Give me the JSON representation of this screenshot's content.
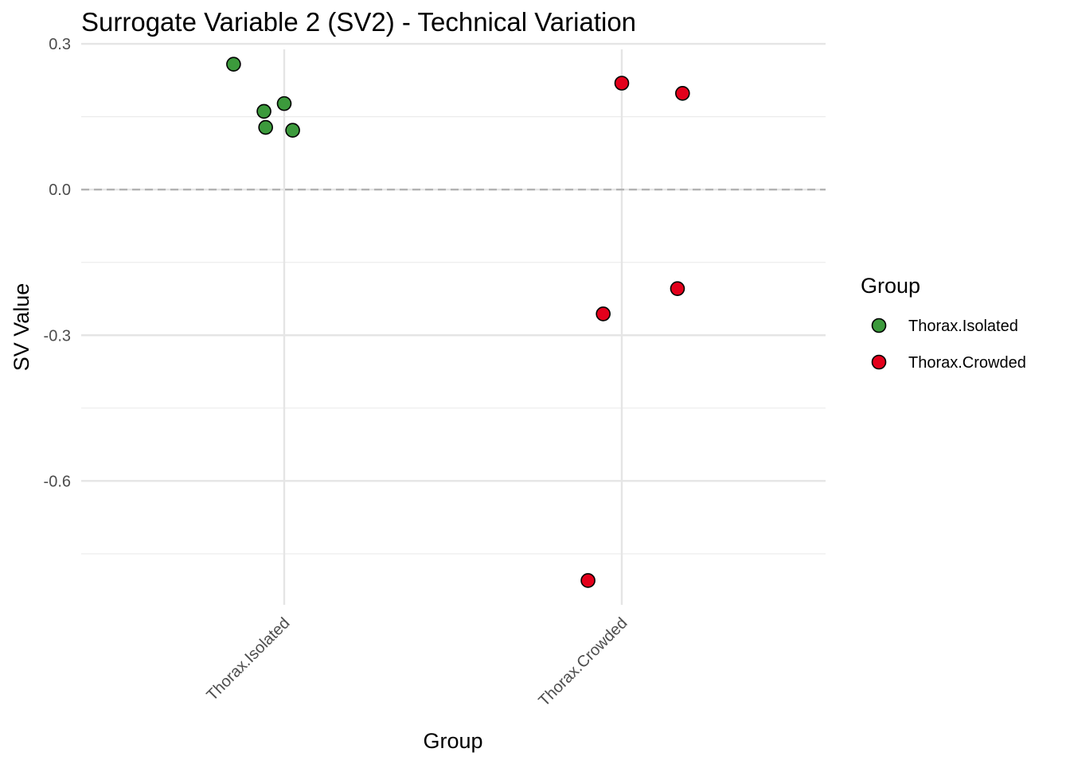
{
  "chart_data": {
    "type": "scatter",
    "title": "Surrogate Variable 2 (SV2) - Technical Variation",
    "xlabel": "Group",
    "ylabel": "SV Value",
    "categories": [
      "Thorax.Isolated",
      "Thorax.Crowded"
    ],
    "ylim": [
      -0.855,
      0.305
    ],
    "yticks": [
      0.3,
      0.0,
      -0.3,
      -0.6
    ],
    "ytick_labels": [
      "0.3",
      "0.0",
      "-0.3",
      "-0.6"
    ],
    "reference_line": {
      "y": 0.0,
      "style": "dashed"
    },
    "grid": true,
    "legend": {
      "title": "Group",
      "position": "right",
      "entries": [
        {
          "label": "Thorax.Isolated",
          "color": "#3c9a3c"
        },
        {
          "label": "Thorax.Crowded",
          "color": "#e3001b"
        }
      ]
    },
    "series": [
      {
        "name": "Thorax.Isolated",
        "color": "#3c9a3c",
        "points": [
          {
            "x": "Thorax.Isolated",
            "jitter": -0.15,
            "y": 0.258
          },
          {
            "x": "Thorax.Isolated",
            "jitter": -0.06,
            "y": 0.161
          },
          {
            "x": "Thorax.Isolated",
            "jitter": 0.0,
            "y": 0.177
          },
          {
            "x": "Thorax.Isolated",
            "jitter": -0.055,
            "y": 0.128
          },
          {
            "x": "Thorax.Isolated",
            "jitter": 0.025,
            "y": 0.122
          }
        ]
      },
      {
        "name": "Thorax.Crowded",
        "color": "#e3001b",
        "points": [
          {
            "x": "Thorax.Crowded",
            "jitter": 0.0,
            "y": 0.219
          },
          {
            "x": "Thorax.Crowded",
            "jitter": 0.18,
            "y": 0.198
          },
          {
            "x": "Thorax.Crowded",
            "jitter": -0.055,
            "y": -0.256
          },
          {
            "x": "Thorax.Crowded",
            "jitter": 0.165,
            "y": -0.204
          },
          {
            "x": "Thorax.Crowded",
            "jitter": -0.1,
            "y": -0.805
          }
        ]
      }
    ]
  }
}
